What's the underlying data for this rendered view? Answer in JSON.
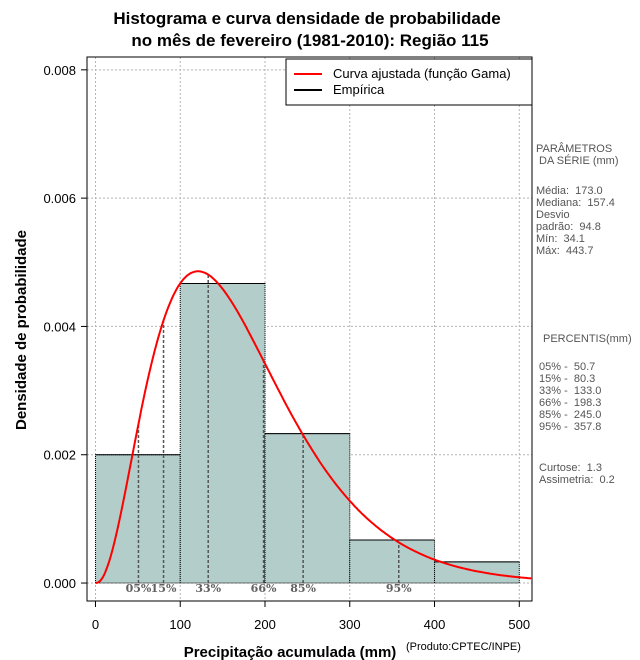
{
  "chart_data": {
    "type": "histogram",
    "title_lines": [
      "Histograma e curva densidade de probabilidade",
      "no mês de fevereiro (1981-2010): Região 115"
    ],
    "xlabel": "Precipitação acumulada (mm)",
    "ylabel": "Densidade de probabilidade",
    "xlim": [
      -10,
      515
    ],
    "ylim": [
      -0.00028,
      0.0082
    ],
    "x_ticks": [
      0,
      100,
      200,
      300,
      400,
      500
    ],
    "x_tick_labels": [
      "0",
      "100",
      "200",
      "300",
      "400",
      "500"
    ],
    "y_ticks": [
      0,
      0.002,
      0.004,
      0.006,
      0.008
    ],
    "y_tick_labels": [
      "0.000",
      "0.002",
      "0.004",
      "0.006",
      "0.008"
    ],
    "grid": true,
    "bins": [
      {
        "x0": 0,
        "x1": 100,
        "density": 0.002
      },
      {
        "x0": 100,
        "x1": 200,
        "density": 0.00467
      },
      {
        "x0": 200,
        "x1": 300,
        "density": 0.00233
      },
      {
        "x0": 300,
        "x1": 400,
        "density": 0.00067
      },
      {
        "x0": 400,
        "x1": 500,
        "density": 0.00033
      }
    ],
    "gamma_fit": {
      "shape": 3.33,
      "scale": 51.9
    },
    "percentiles": [
      {
        "label": "05%",
        "value": 50.7
      },
      {
        "label": "15%",
        "value": 80.3
      },
      {
        "label": "33%",
        "value": 133.0
      },
      {
        "label": "66%",
        "value": 198.3
      },
      {
        "label": "85%",
        "value": 245.0
      },
      {
        "label": "95%",
        "value": 357.8
      }
    ],
    "legend": [
      {
        "label": "Curva ajustada (função Gama)",
        "color": "#ff0000"
      },
      {
        "label": "Empírica",
        "color": "#000000"
      }
    ],
    "legend_position": "top-right",
    "colors": {
      "bar_fill": "#b3cdcb",
      "curve": "#ff0000",
      "grid": "#b4b4b4",
      "percentile_line": "#555555",
      "percentile_text": "#606060"
    }
  },
  "side_panel": {
    "params_title": "PARÂMETROS\n DA SÉRIE (mm)",
    "params_body": "Média:  173.0\nMediana:  157.4\nDesvio\npadrão:  94.8\nMín:  34.1\nMáx:  443.7",
    "percentis_title": "PERCENTIS(mm)",
    "percentis_body": "05% -  50.7\n15% -  80.3\n33% -  133.0\n66% -  198.3\n85% -  245.0\n95% -  357.8",
    "stats_body": "Curtose:  1.3\nAssimetria:  0.2"
  },
  "credit": "(Produto:CPTEC/INPE)"
}
